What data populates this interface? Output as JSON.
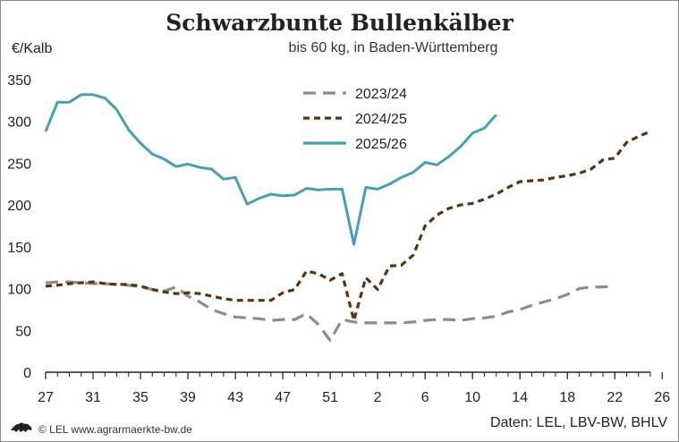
{
  "chart_data": {
    "type": "line",
    "title": "Schwarzbunte Bullenkälber",
    "subtitle": "bis 60 kg, in Baden-Württemberg",
    "ylabel": "€/Kalb",
    "ylim": [
      0,
      350
    ],
    "yticks": [
      0,
      50,
      100,
      150,
      200,
      250,
      300,
      350
    ],
    "xticklabels": [
      "27",
      "31",
      "35",
      "39",
      "43",
      "47",
      "51",
      "2",
      "6",
      "10",
      "14",
      "18",
      "22",
      "26"
    ],
    "grid": false,
    "legend_position": "top-center",
    "series": [
      {
        "name": "2023/24",
        "color": "#8c8c8c",
        "style": "dashed",
        "values": [
          107,
          108,
          108,
          107,
          106,
          106,
          105,
          104,
          102,
          99,
          97,
          102,
          91,
          84,
          75,
          70,
          66,
          65,
          64,
          62,
          63,
          63,
          70,
          57,
          38,
          63,
          60,
          59,
          59,
          59,
          59,
          60,
          62,
          63,
          63,
          62,
          64,
          65,
          67,
          72,
          75,
          80,
          84,
          88,
          93,
          100,
          102,
          102,
          103
        ]
      },
      {
        "name": "2024/25",
        "color": "#5c3210",
        "style": "dotted",
        "values": [
          103,
          104,
          106,
          107,
          108,
          106,
          105,
          105,
          103,
          99,
          96,
          94,
          95,
          94,
          91,
          88,
          86,
          86,
          86,
          86,
          95,
          99,
          121,
          118,
          110,
          118,
          62,
          113,
          99,
          127,
          128,
          140,
          175,
          188,
          196,
          200,
          202,
          207,
          213,
          221,
          228,
          229,
          230,
          233,
          235,
          238,
          243,
          254,
          256,
          275,
          282,
          288
        ]
      },
      {
        "name": "2025/26",
        "color": "#45a0b4",
        "style": "solid",
        "values": [
          288,
          323,
          323,
          332,
          332,
          328,
          314,
          290,
          274,
          261,
          255,
          246,
          249,
          245,
          243,
          231,
          233,
          201,
          208,
          213,
          211,
          212,
          220,
          218,
          219,
          219,
          153,
          221,
          219,
          225,
          233,
          239,
          251,
          248,
          258,
          270,
          286,
          292,
          308
        ]
      }
    ]
  },
  "footer": {
    "copyright": "© LEL www.agrarmaerkte-bw.de",
    "source": "Daten: LEL, LBV-BW, BHLV"
  }
}
